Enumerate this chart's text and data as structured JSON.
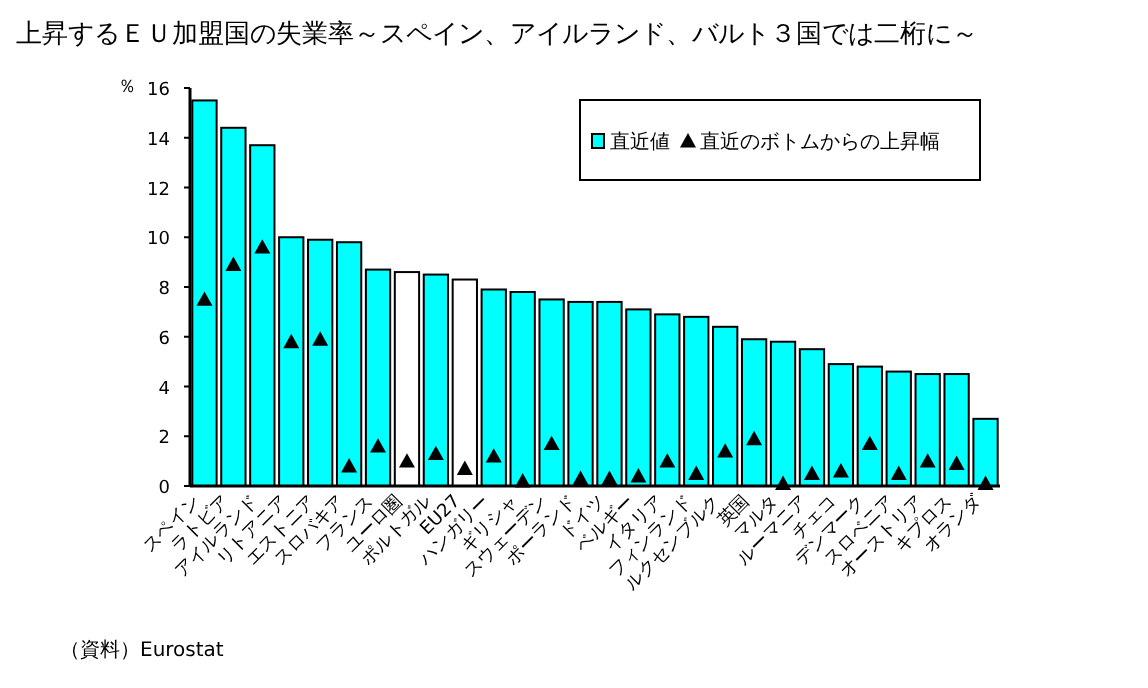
{
  "chart_data": {
    "type": "bar",
    "title": "上昇するＥＵ加盟国の失業率～スペイン、アイルランド、バルト３国では二桁に～",
    "ylabel": "％",
    "categories": [
      "スペイン",
      "ラトビア",
      "アイルランド",
      "リトアニア",
      "エストニア",
      "スロバキア",
      "フランス",
      "ユーロ圏",
      "ポルトガル",
      "EU27",
      "ハンガリー",
      "ギリシャ",
      "スウェーデン",
      "ポーランド",
      "ドイツ",
      "ベルギー",
      "イタリア",
      "フィンランド",
      "ルクセンブルク",
      "英国",
      "マルタ",
      "ルーマニア",
      "チェコ",
      "デンマーク",
      "スロベニア",
      "オーストリア",
      "キプロス",
      "オランダ"
    ],
    "series": [
      {
        "name": "直近値",
        "color": "#00ffff",
        "colors": [
          "#00ffff",
          "#00ffff",
          "#00ffff",
          "#00ffff",
          "#00ffff",
          "#00ffff",
          "#00ffff",
          "#ffffff",
          "#00ffff",
          "#ffffff",
          "#00ffff",
          "#00ffff",
          "#00ffff",
          "#00ffff",
          "#00ffff",
          "#00ffff",
          "#00ffff",
          "#00ffff",
          "#00ffff",
          "#00ffff",
          "#00ffff",
          "#00ffff",
          "#00ffff",
          "#00ffff",
          "#00ffff",
          "#00ffff",
          "#00ffff",
          "#00ffff"
        ],
        "values": [
          15.5,
          14.4,
          13.7,
          10.0,
          9.9,
          9.8,
          8.7,
          8.6,
          8.5,
          8.3,
          7.9,
          7.8,
          7.5,
          7.4,
          7.4,
          7.1,
          6.9,
          6.8,
          6.4,
          5.9,
          5.8,
          5.5,
          4.9,
          4.8,
          4.6,
          4.5,
          4.5,
          2.7
        ]
      },
      {
        "name": "直近のボトムからの上昇幅",
        "type": "scatter",
        "marker": "triangle",
        "color": "#000000",
        "values": [
          7.5,
          8.9,
          9.6,
          5.8,
          5.9,
          0.8,
          1.6,
          1.0,
          1.3,
          0.7,
          1.2,
          0.2,
          1.7,
          0.3,
          0.3,
          0.4,
          1.0,
          0.5,
          1.4,
          1.9,
          0.1,
          0.5,
          0.6,
          1.7,
          0.5,
          1.0,
          0.9,
          0.1
        ]
      }
    ],
    "ylim": [
      0,
      16
    ],
    "yticks": [
      0,
      2,
      4,
      6,
      8,
      10,
      12,
      14,
      16
    ],
    "grid": false,
    "legend": "top right",
    "annotations": [
      "（資料）Eurostat"
    ]
  }
}
